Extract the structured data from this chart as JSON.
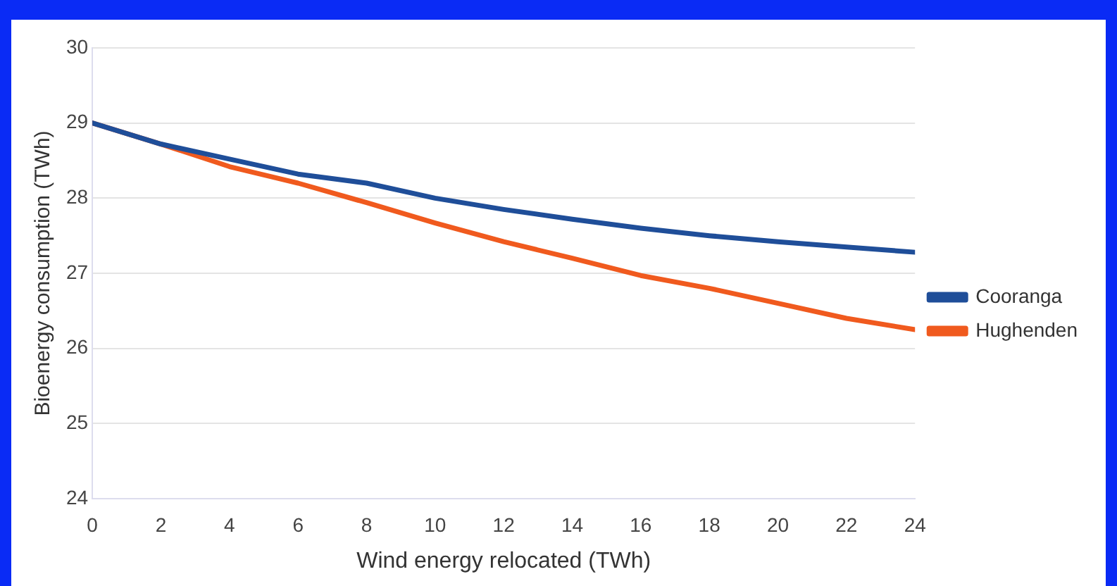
{
  "chart_data": {
    "type": "line",
    "xlabel": "Wind energy relocated (TWh)",
    "ylabel": "Bioenergy consumption (TWh)",
    "x": [
      0,
      2,
      4,
      6,
      8,
      10,
      12,
      14,
      16,
      18,
      20,
      22,
      24
    ],
    "series": [
      {
        "name": "Cooranga",
        "color": "#1f4e99",
        "values": [
          29,
          28.72,
          28.52,
          28.32,
          28.2,
          28.0,
          27.85,
          27.72,
          27.6,
          27.5,
          27.42,
          27.35,
          27.28
        ]
      },
      {
        "name": "Hughenden",
        "color": "#f05a1e",
        "values": [
          29,
          28.72,
          28.42,
          28.2,
          27.94,
          27.67,
          27.42,
          27.2,
          26.97,
          26.8,
          26.6,
          26.4,
          26.25
        ]
      }
    ],
    "xlim": [
      0,
      24
    ],
    "xticks": [
      0,
      2,
      4,
      6,
      8,
      10,
      12,
      14,
      16,
      18,
      20,
      22,
      24
    ],
    "ylim": [
      24,
      30
    ],
    "yticks": [
      24,
      25,
      26,
      27,
      28,
      29,
      30
    ],
    "grid": "y",
    "legend": "right",
    "marker": "none",
    "line_style": "solid"
  }
}
